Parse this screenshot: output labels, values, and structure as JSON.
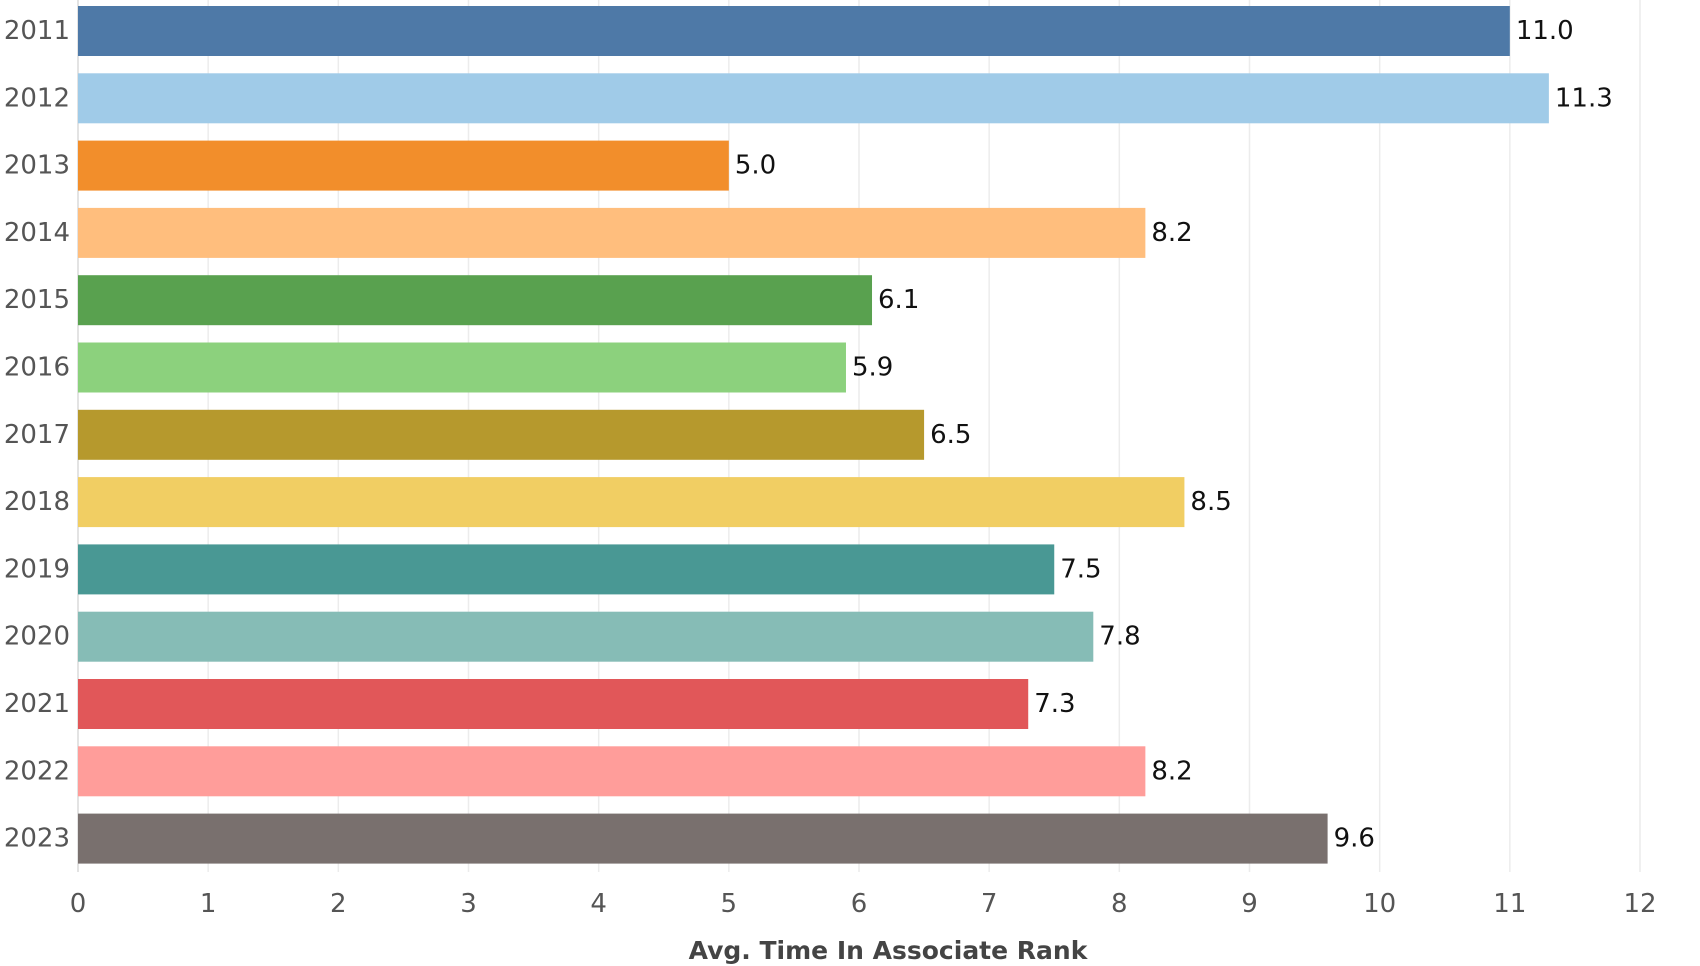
{
  "chart_data": {
    "type": "bar",
    "orientation": "horizontal",
    "categories": [
      "2011",
      "2012",
      "2013",
      "2014",
      "2015",
      "2016",
      "2017",
      "2018",
      "2019",
      "2020",
      "2021",
      "2022",
      "2023"
    ],
    "values": [
      11.0,
      11.3,
      5.0,
      8.2,
      6.1,
      5.9,
      6.5,
      8.5,
      7.5,
      7.8,
      7.3,
      8.2,
      9.6
    ],
    "value_labels": [
      "11.0",
      "11.3",
      "5.0",
      "8.2",
      "6.1",
      "5.9",
      "6.5",
      "8.5",
      "7.5",
      "7.8",
      "7.3",
      "8.2",
      "9.6"
    ],
    "colors": [
      "#4e79a7",
      "#a0cbe8",
      "#f28e2b",
      "#ffbe7d",
      "#59a14f",
      "#8cd17d",
      "#b6992d",
      "#f1ce63",
      "#499894",
      "#86bcb6",
      "#e15759",
      "#ff9d9a",
      "#79706e"
    ],
    "xlabel": "Avg. Time In Associate Rank",
    "ylabel": "",
    "title": "",
    "xlim": [
      0,
      12
    ],
    "xticks": [
      0,
      1,
      2,
      3,
      4,
      5,
      6,
      7,
      8,
      9,
      10,
      11,
      12
    ],
    "xtick_labels": [
      "0",
      "1",
      "2",
      "3",
      "4",
      "5",
      "6",
      "7",
      "8",
      "9",
      "10",
      "11",
      "12"
    ],
    "grid": true,
    "legend": "none"
  }
}
